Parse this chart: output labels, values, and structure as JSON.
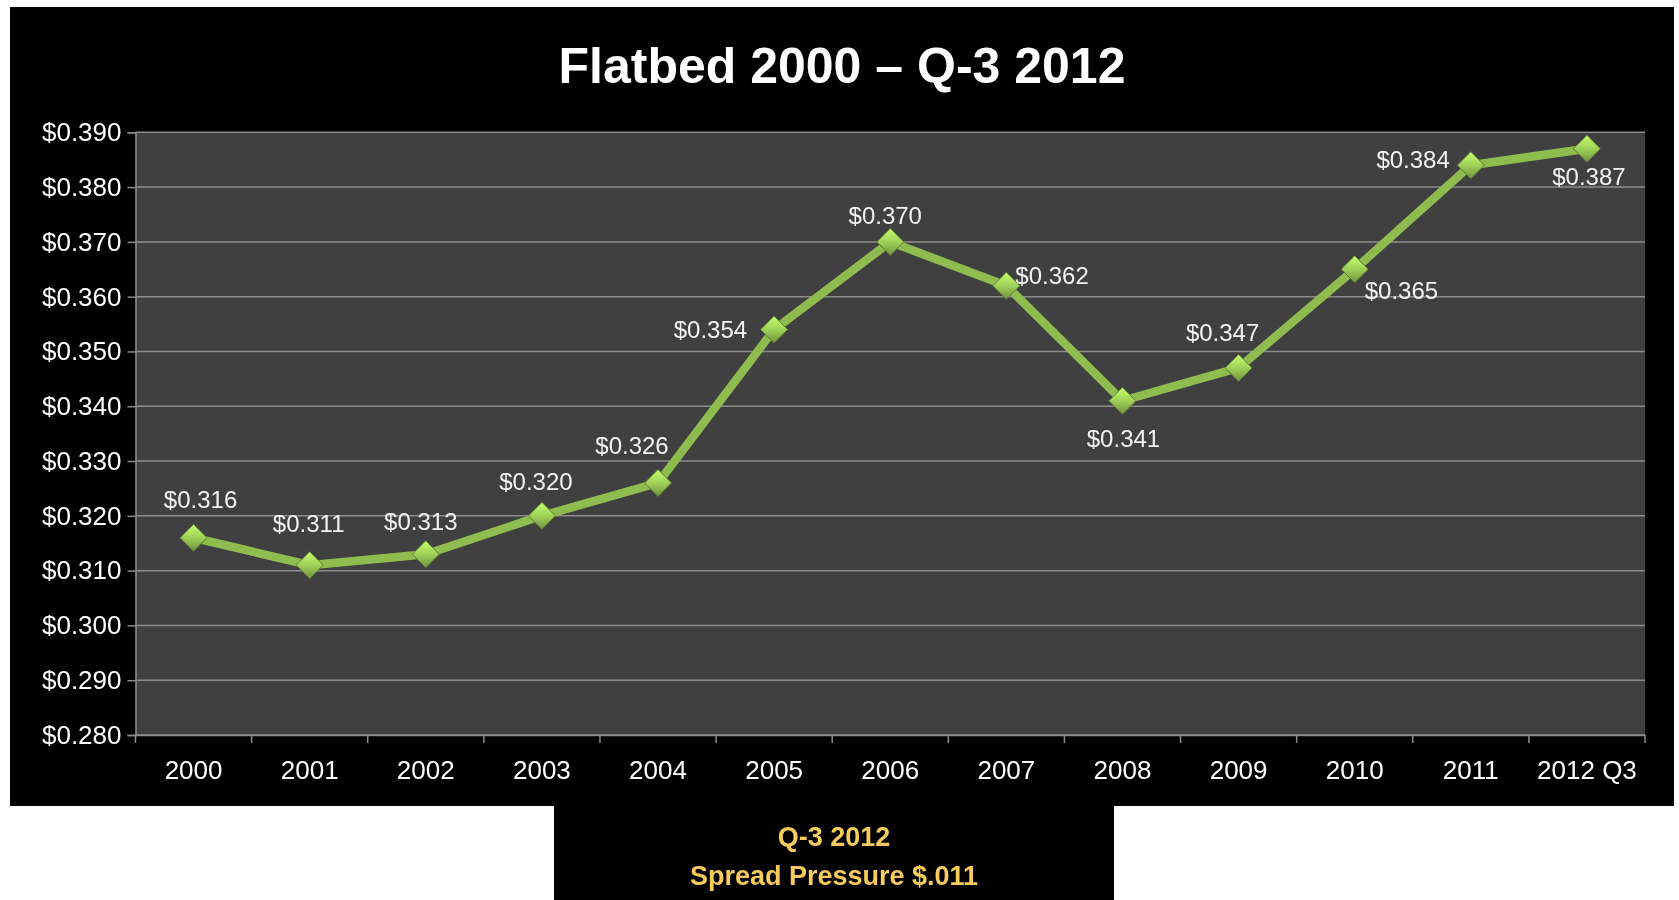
{
  "chart_data": {
    "type": "line",
    "title": "Flatbed 2000 – Q-3 2012",
    "categories": [
      "2000",
      "2001",
      "2002",
      "2003",
      "2004",
      "2005",
      "2006",
      "2007",
      "2008",
      "2009",
      "2010",
      "2011",
      "2012 Q3"
    ],
    "series": [
      {
        "color": "#8fbc4f",
        "values": [
          0.316,
          0.311,
          0.313,
          0.32,
          0.326,
          0.354,
          0.37,
          0.362,
          0.341,
          0.347,
          0.365,
          0.384,
          0.387
        ],
        "value_labels": [
          "$0.316",
          "$0.311",
          "$0.313",
          "$0.320",
          "$0.326",
          "$0.354",
          "$0.370",
          "$0.362",
          "$0.341",
          "$0.347",
          "$0.365",
          "$0.384",
          "$0.387"
        ]
      }
    ],
    "ylim": [
      0.28,
      0.39
    ],
    "yticks": [
      {
        "value": 0.28,
        "label": "$0.280"
      },
      {
        "value": 0.29,
        "label": "$0.290"
      },
      {
        "value": 0.3,
        "label": "$0.300"
      },
      {
        "value": 0.31,
        "label": "$0.310"
      },
      {
        "value": 0.32,
        "label": "$0.320"
      },
      {
        "value": 0.33,
        "label": "$0.330"
      },
      {
        "value": 0.34,
        "label": "$0.340"
      },
      {
        "value": 0.35,
        "label": "$0.350"
      },
      {
        "value": 0.36,
        "label": "$0.360"
      },
      {
        "value": 0.37,
        "label": "$0.370"
      },
      {
        "value": 0.38,
        "label": "$0.380"
      },
      {
        "value": 0.39,
        "label": "$0.390"
      }
    ],
    "grid": "y",
    "marker": "diamond",
    "line_style": "solid",
    "annotations": [
      "Q-3 2012",
      "Spread Pressure $.011"
    ]
  }
}
